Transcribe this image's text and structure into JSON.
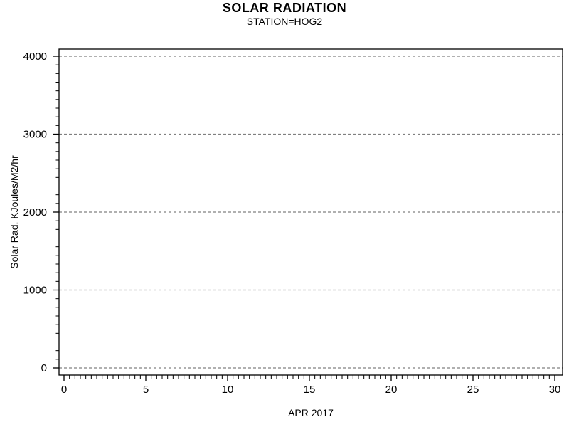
{
  "chart_data": {
    "type": "line",
    "title": "SOLAR RADIATION",
    "subtitle": "STATION=HOG2",
    "xlabel": "APR 2017",
    "ylabel": "Solar Rad. KJoules/M2/hr",
    "xlim": [
      0,
      30
    ],
    "ylim": [
      0,
      4000
    ],
    "x_ticks": [
      0,
      5,
      10,
      15,
      20,
      25,
      30
    ],
    "y_ticks": [
      0,
      1000,
      2000,
      3000,
      4000
    ],
    "x_minor_ticks_between_majors": 14,
    "y_minor_ticks_between_majors": 8,
    "grid": {
      "horizontal": true,
      "vertical": false,
      "line_style": "dashed"
    },
    "legend_position": "none",
    "series": [],
    "colors": {
      "background": "#ffffff",
      "axis": "#000000",
      "grid": "#808080",
      "text": "#000000"
    }
  }
}
